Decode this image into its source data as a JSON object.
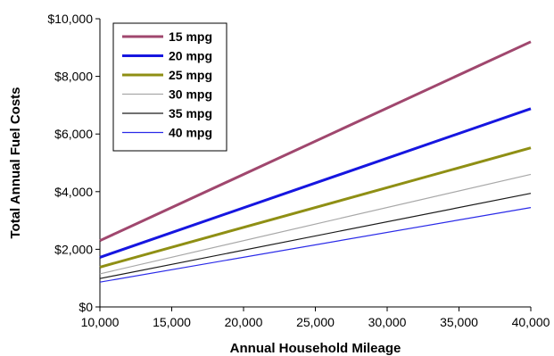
{
  "chart_data": {
    "type": "line",
    "title": "",
    "xlabel": "Annual Household Mileage",
    "ylabel": "Total Annual Fuel Costs",
    "xlim": [
      10000,
      40000
    ],
    "ylim": [
      0,
      10000
    ],
    "x_ticks": [
      10000,
      15000,
      20000,
      25000,
      30000,
      35000,
      40000
    ],
    "x_tick_labels": [
      "10,000",
      "15,000",
      "20,000",
      "25,000",
      "30,000",
      "35,000",
      "40,000"
    ],
    "y_ticks": [
      0,
      2000,
      4000,
      6000,
      8000,
      10000
    ],
    "y_tick_labels": [
      "$0",
      "$2,000",
      "$4,000",
      "$6,000",
      "$8,000",
      "$10,000"
    ],
    "grid": false,
    "legend_position": "top-left",
    "series": [
      {
        "name": "15 mpg",
        "color": "#a0476e",
        "points": [
          [
            10000,
            2300
          ],
          [
            40000,
            9200
          ]
        ]
      },
      {
        "name": "20 mpg",
        "color": "#1616e0",
        "points": [
          [
            10000,
            1720
          ],
          [
            40000,
            6880
          ]
        ]
      },
      {
        "name": "25 mpg",
        "color": "#8f8f14",
        "points": [
          [
            10000,
            1380
          ],
          [
            40000,
            5520
          ]
        ]
      },
      {
        "name": "30 mpg",
        "color": "#a8a8a8",
        "points": [
          [
            10000,
            1150
          ],
          [
            40000,
            4600
          ]
        ]
      },
      {
        "name": "35 mpg",
        "color": "#1a1a1a",
        "points": [
          [
            10000,
            985
          ],
          [
            40000,
            3940
          ]
        ]
      },
      {
        "name": "40 mpg",
        "color": "#2a2ae8",
        "points": [
          [
            10000,
            860
          ],
          [
            40000,
            3450
          ]
        ]
      }
    ]
  }
}
